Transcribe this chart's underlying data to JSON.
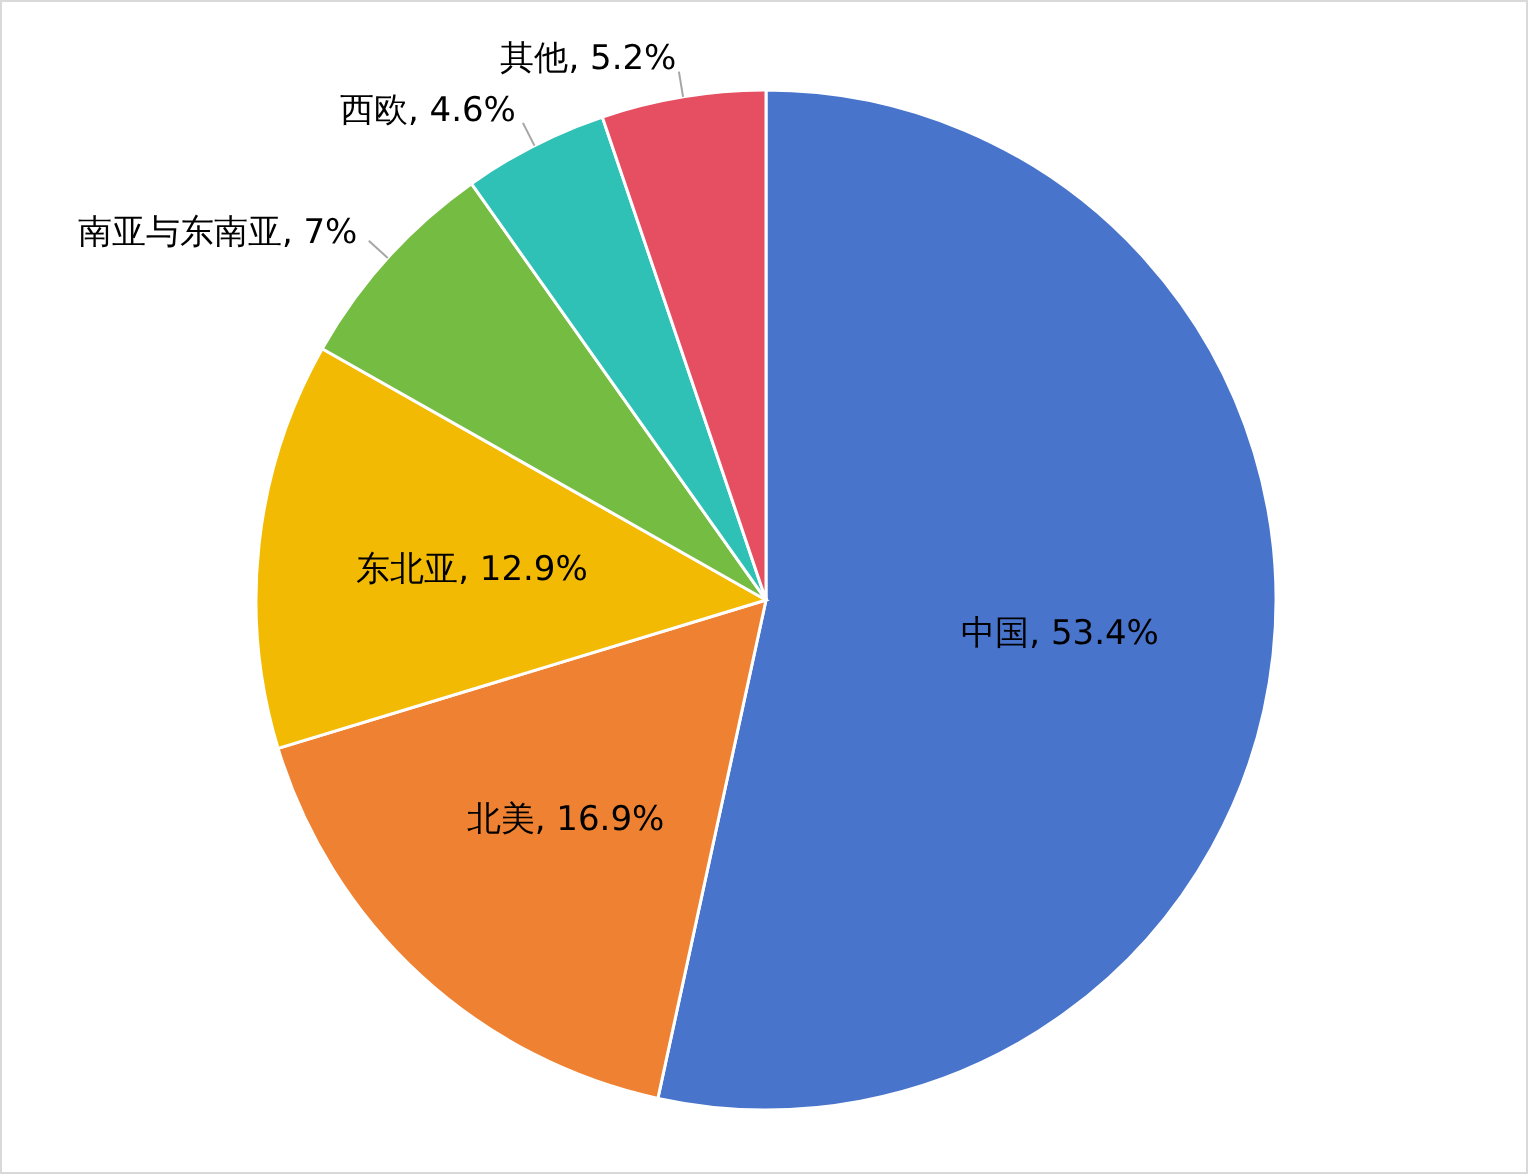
{
  "chart_data": {
    "type": "pie",
    "categories": [
      "中国",
      "北美",
      "东北亚",
      "南亚与东南亚",
      "西欧",
      "其他"
    ],
    "values": [
      53.4,
      16.9,
      12.9,
      7,
      4.6,
      5.2
    ],
    "colors": [
      "#4874cb",
      "#ee8232",
      "#f2ba02",
      "#75bc42",
      "#2fc1b6",
      "#e64e62"
    ],
    "value_labels": [
      ", 53.4%",
      ", 16.9%",
      ", 12.9%",
      ", 7%",
      ", 4.6%",
      ", 5.2%"
    ],
    "legend": false
  }
}
